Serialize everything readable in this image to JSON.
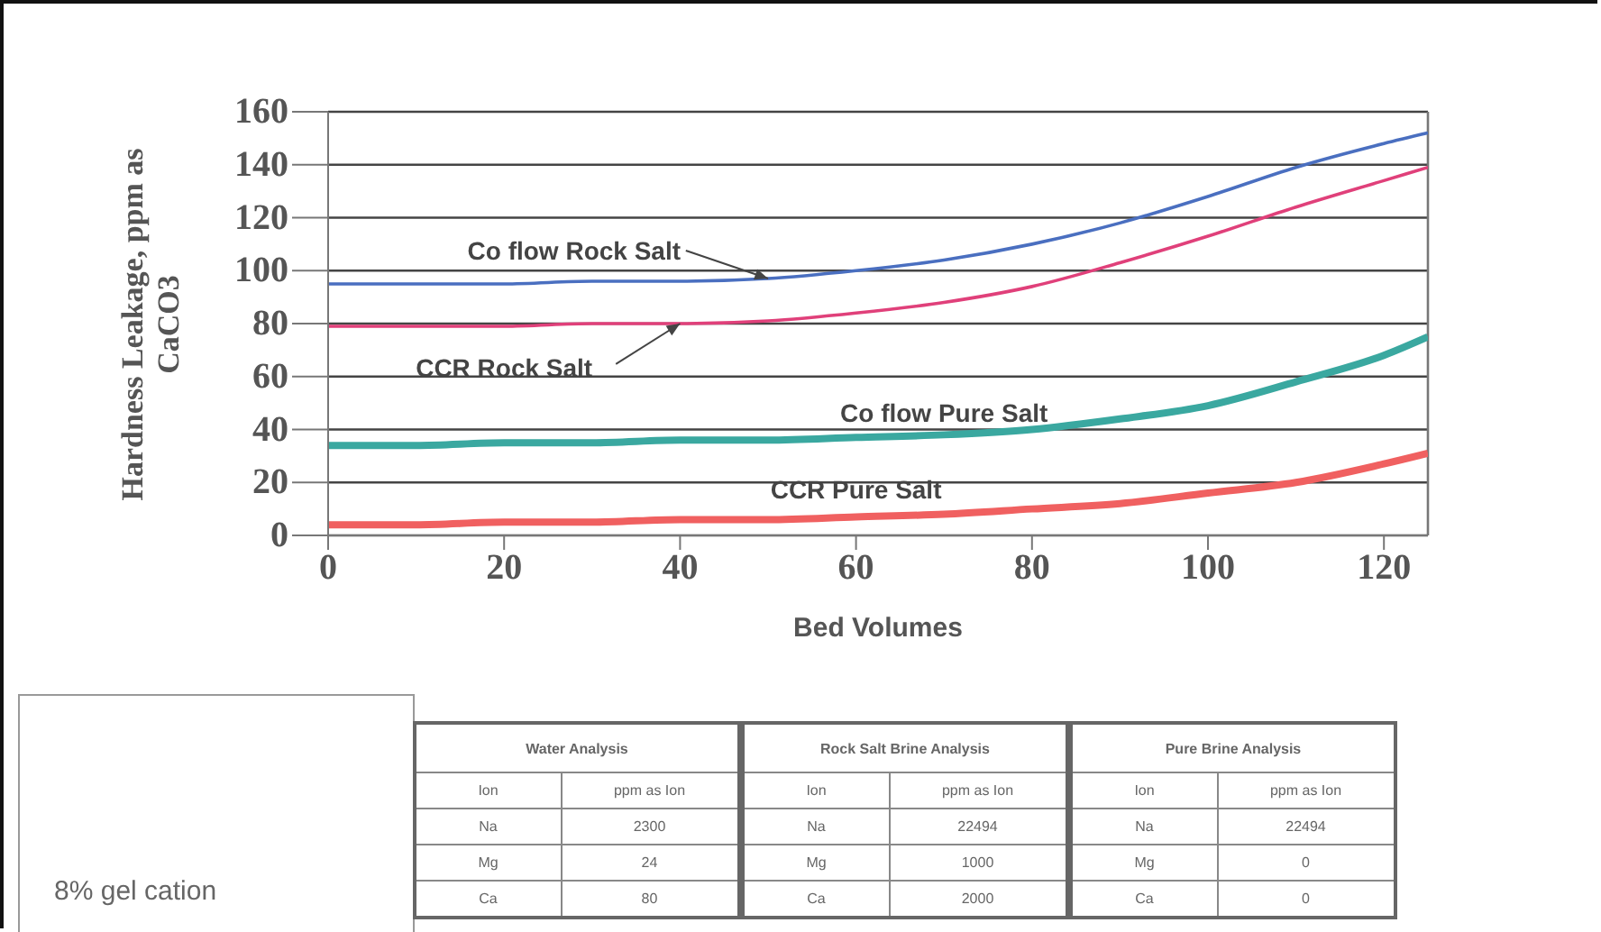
{
  "chart_data": {
    "type": "line",
    "xlabel": "Bed Volumes",
    "ylabel": "Hardness Leakage, ppm as CaCO3",
    "xlim": [
      0,
      125
    ],
    "xticks": [
      0,
      20,
      40,
      60,
      80,
      100,
      120
    ],
    "ylim": [
      0,
      160
    ],
    "yticks": [
      0,
      20,
      40,
      60,
      80,
      100,
      120,
      140,
      160
    ],
    "grid": "y",
    "series": [
      {
        "name": "Co flow Rock Salt",
        "color": "#4a6fc0",
        "x": [
          0,
          10,
          20,
          30,
          40,
          50,
          60,
          70,
          80,
          90,
          100,
          110,
          120,
          125
        ],
        "values": [
          95,
          95,
          95,
          96,
          96,
          97,
          100,
          104,
          110,
          118,
          128,
          139,
          148,
          152
        ]
      },
      {
        "name": "CCR Rock Salt",
        "color": "#e0407a",
        "x": [
          0,
          10,
          20,
          30,
          40,
          50,
          60,
          70,
          80,
          90,
          100,
          110,
          120,
          125
        ],
        "values": [
          79,
          79,
          79,
          80,
          80,
          81,
          84,
          88,
          94,
          103,
          113,
          124,
          134,
          139
        ]
      },
      {
        "name": "Co flow Pure Salt",
        "color": "#3aa8a0",
        "x": [
          0,
          10,
          20,
          30,
          40,
          50,
          60,
          70,
          80,
          90,
          100,
          110,
          120,
          125
        ],
        "values": [
          34,
          34,
          35,
          35,
          36,
          36,
          37,
          38,
          40,
          44,
          49,
          58,
          68,
          75
        ]
      },
      {
        "name": "CCR Pure Salt",
        "color": "#f06060",
        "x": [
          0,
          10,
          20,
          30,
          40,
          50,
          60,
          70,
          80,
          90,
          100,
          110,
          120,
          125
        ],
        "values": [
          4,
          4,
          5,
          5,
          6,
          6,
          7,
          8,
          10,
          12,
          16,
          20,
          27,
          31
        ]
      }
    ],
    "annotations": [
      "8% gel cation",
      "Water Analysis",
      "Ion",
      "ppm as Ion",
      "Na",
      "2300",
      "Mg",
      "24",
      "Ca",
      "80",
      "Rock Salt Brine Analysis",
      "Ion",
      "ppm as Ion",
      "Na",
      "22494",
      "Mg",
      "1000",
      "Ca",
      "2000",
      "Pure Brine Analysis",
      "Ion",
      "ppm as Ion",
      "Na",
      "22494",
      "Mg",
      "0",
      "Ca",
      "0"
    ]
  }
}
